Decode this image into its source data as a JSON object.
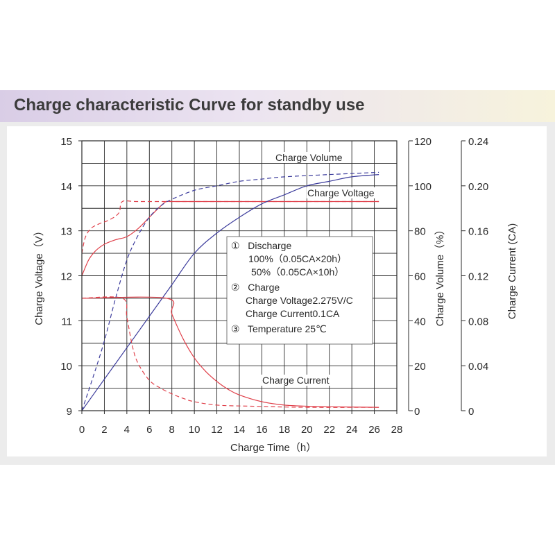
{
  "page_title": "Charge characteristic Curve for standby use",
  "chart_data": {
    "type": "line",
    "title": "Charge characteristic Curve for standby use",
    "xlabel": "Charge Time（h）",
    "ylabel_left": "Charge Voltage（V）",
    "ylabel_right1": "Charge Volume（%）",
    "ylabel_right2": "Charge Current (CA)",
    "xlim": [
      0,
      28
    ],
    "ylim_voltage": [
      9,
      15
    ],
    "ylim_volume": [
      0,
      120
    ],
    "ylim_current": [
      0,
      0.24
    ],
    "x_ticks": [
      "0",
      "2",
      "4",
      "6",
      "8",
      "10",
      "12",
      "14",
      "16",
      "18",
      "20",
      "22",
      "24",
      "26",
      "28"
    ],
    "voltage_ticks": [
      "9",
      "10",
      "11",
      "12",
      "13",
      "14",
      "15"
    ],
    "volume_ticks": [
      "0",
      "20",
      "40",
      "60",
      "80",
      "100",
      "120"
    ],
    "current_ticks": [
      "0",
      "0.04",
      "0.08",
      "0.12",
      "0.16",
      "0.20",
      "0.24"
    ],
    "grid": true,
    "curve_labels": {
      "volume": "Charge Volume",
      "voltage": "Charge Voltage",
      "current": "Charge Current"
    },
    "annotation_lines": [
      "①   Discharge",
      "100%（0.05CA×20h）",
      "50%（0.05CA×10h）",
      "②   Charge",
      "Charge Voltage2.275V/C",
      "Charge Current0.1CA",
      "③   Temperature 25℃"
    ],
    "colors": {
      "voltage_current": "#e0404a",
      "volume": "#3c3c9c",
      "grid": "#2a2a2a"
    },
    "series": [
      {
        "quantity": "voltage",
        "discharge": "100%",
        "style": "solid",
        "points": [
          [
            0,
            12.0
          ],
          [
            0.6,
            12.35
          ],
          [
            1.2,
            12.55
          ],
          [
            2,
            12.7
          ],
          [
            3,
            12.8
          ],
          [
            4,
            12.87
          ],
          [
            5,
            13.05
          ],
          [
            6,
            13.3
          ],
          [
            7,
            13.55
          ],
          [
            7.5,
            13.65
          ],
          [
            8,
            13.65
          ],
          [
            12,
            13.65
          ],
          [
            18,
            13.65
          ],
          [
            26.4,
            13.65
          ]
        ]
      },
      {
        "quantity": "voltage",
        "discharge": "50%",
        "style": "dashed",
        "points": [
          [
            0,
            12.5
          ],
          [
            0.3,
            12.85
          ],
          [
            0.8,
            13.05
          ],
          [
            1.5,
            13.15
          ],
          [
            2.5,
            13.25
          ],
          [
            3.3,
            13.4
          ],
          [
            3.6,
            13.65
          ],
          [
            5,
            13.65
          ],
          [
            10,
            13.65
          ],
          [
            18,
            13.65
          ],
          [
            26.4,
            13.65
          ]
        ]
      },
      {
        "quantity": "volume",
        "discharge": "100%",
        "style": "solid",
        "points": [
          [
            0,
            0
          ],
          [
            2,
            14
          ],
          [
            4,
            28
          ],
          [
            6,
            42
          ],
          [
            8,
            56
          ],
          [
            10,
            70
          ],
          [
            12,
            79
          ],
          [
            14,
            86
          ],
          [
            16,
            92
          ],
          [
            18,
            96
          ],
          [
            20,
            100
          ],
          [
            22,
            102
          ],
          [
            24,
            104
          ],
          [
            26.4,
            105
          ]
        ]
      },
      {
        "quantity": "volume",
        "discharge": "50%",
        "style": "dashed",
        "points": [
          [
            0,
            0
          ],
          [
            1,
            15
          ],
          [
            2,
            31
          ],
          [
            3,
            50
          ],
          [
            4,
            67
          ],
          [
            5,
            78
          ],
          [
            6,
            86
          ],
          [
            7,
            91
          ],
          [
            8,
            94
          ],
          [
            10,
            98
          ],
          [
            12,
            100
          ],
          [
            14,
            102
          ],
          [
            16,
            103
          ],
          [
            18,
            104
          ],
          [
            22,
            105
          ],
          [
            26.4,
            106
          ]
        ]
      },
      {
        "quantity": "current",
        "discharge": "100%",
        "style": "solid",
        "points": [
          [
            0,
            0.1
          ],
          [
            7.5,
            0.1
          ],
          [
            8,
            0.086
          ],
          [
            9,
            0.064
          ],
          [
            10,
            0.047
          ],
          [
            11,
            0.035
          ],
          [
            12,
            0.026
          ],
          [
            13,
            0.019
          ],
          [
            14,
            0.014
          ],
          [
            16,
            0.008
          ],
          [
            18,
            0.005
          ],
          [
            20,
            0.004
          ],
          [
            22,
            0.0035
          ],
          [
            26.4,
            0.003
          ]
        ]
      },
      {
        "quantity": "current",
        "discharge": "50%",
        "style": "dashed",
        "points": [
          [
            0,
            0.1
          ],
          [
            3.6,
            0.1
          ],
          [
            4,
            0.083
          ],
          [
            4.5,
            0.057
          ],
          [
            5,
            0.042
          ],
          [
            6,
            0.027
          ],
          [
            7,
            0.02
          ],
          [
            8,
            0.015
          ],
          [
            9,
            0.011
          ],
          [
            10,
            0.008
          ],
          [
            12,
            0.005
          ],
          [
            15,
            0.004
          ],
          [
            20,
            0.003
          ],
          [
            26.4,
            0.003
          ]
        ]
      }
    ]
  }
}
